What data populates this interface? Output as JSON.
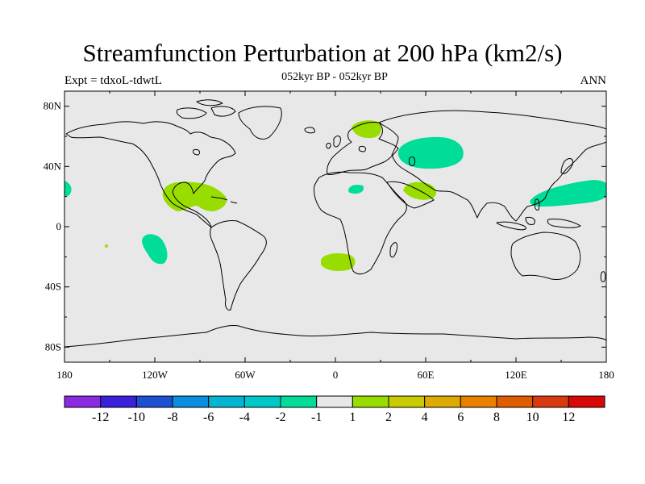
{
  "title": "Streamfunction Perturbation at 200 hPa (km2/s)",
  "subtitle": "052kyr BP - 052kyr BP",
  "left_label": "Expt = tdxoL-tdwtL",
  "right_label": "ANN",
  "colors": {
    "ocean_land_bg": "#e8e8e8",
    "green_pos": "#99dd00",
    "teal_neg": "#00dd99"
  },
  "map": {
    "lat_ticks": [
      "80N",
      "40N",
      "0",
      "40S",
      "80S"
    ],
    "lon_ticks": [
      "180",
      "120W",
      "60W",
      "0",
      "60E",
      "120E",
      "180"
    ]
  },
  "colorbar": {
    "colors": [
      "#8a2be2",
      "#3a20dd",
      "#1e50d2",
      "#0a8ee0",
      "#00b4d2",
      "#00c8c8",
      "#00dd99",
      "#e8e8e8",
      "#99dd00",
      "#c8cc00",
      "#dcaa00",
      "#e88000",
      "#e05c00",
      "#d83a10",
      "#d80808"
    ],
    "labels": [
      "-12",
      "-10",
      "-8",
      "-6",
      "-4",
      "-2",
      "-1",
      "1",
      "2",
      "4",
      "6",
      "8",
      "10",
      "12"
    ]
  },
  "anomalies": [
    {
      "name": "anomaly-central-america",
      "sign": "positive"
    },
    {
      "name": "anomaly-scandinavia",
      "sign": "positive"
    },
    {
      "name": "anomaly-central-asia",
      "sign": "negative"
    },
    {
      "name": "anomaly-west-pacific",
      "sign": "negative"
    },
    {
      "name": "anomaly-arabia",
      "sign": "positive"
    },
    {
      "name": "anomaly-west-africa",
      "sign": "negative"
    },
    {
      "name": "anomaly-south-atlantic",
      "sign": "positive"
    },
    {
      "name": "anomaly-east-pacific",
      "sign": "negative"
    },
    {
      "name": "anomaly-east-pacific-edge",
      "sign": "negative"
    },
    {
      "name": "anomaly-small-dot",
      "sign": "positive"
    }
  ]
}
